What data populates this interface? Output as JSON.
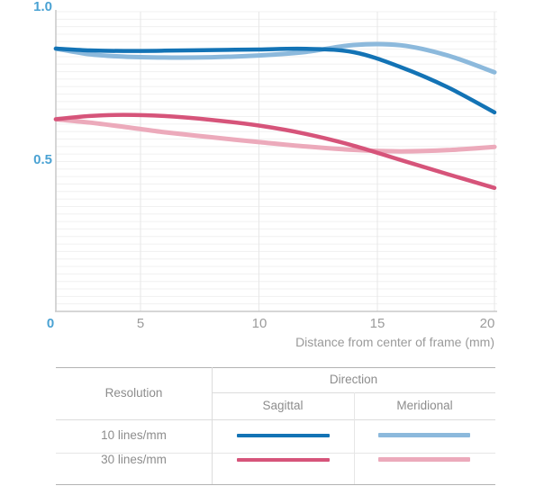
{
  "chart_data": {
    "type": "line",
    "title": "",
    "xlabel": "Distance from center of frame (mm)",
    "ylabel": "",
    "xlim": [
      0,
      20
    ],
    "ylim": [
      0,
      1
    ],
    "x_tick_labels": [
      "0",
      "5",
      "10",
      "15",
      "20"
    ],
    "x_tick_values": [
      0,
      5,
      10,
      15,
      20
    ],
    "y_tick_labels": [
      "1.0",
      "0.5"
    ],
    "y_tick_values": [
      1.0,
      0.5
    ],
    "minor_y_grid_step": 0.025,
    "grid": "on",
    "accent_color": "#4aa2d3",
    "legend_position": "bottom-table",
    "x": [
      0,
      2,
      4,
      6,
      8,
      10,
      12,
      14,
      16,
      18,
      20
    ],
    "series": [
      {
        "name": "10 lines/mm Sagittal",
        "color": "#1373b5",
        "values": [
          0.877,
          0.871,
          0.869,
          0.87,
          0.872,
          0.874,
          0.876,
          0.865,
          0.815,
          0.748,
          0.664
        ]
      },
      {
        "name": "10 lines/mm Meridional",
        "color": "#8cb9dc",
        "values": [
          0.877,
          0.858,
          0.85,
          0.847,
          0.848,
          0.854,
          0.866,
          0.889,
          0.888,
          0.854,
          0.798
        ]
      },
      {
        "name": "30 lines/mm Sagittal",
        "color": "#d6547a",
        "values": [
          0.641,
          0.652,
          0.656,
          0.652,
          0.639,
          0.62,
          0.592,
          0.553,
          0.505,
          0.458,
          0.412
        ]
      },
      {
        "name": "30 lines/mm Meridional",
        "color": "#ecaabb",
        "values": [
          0.641,
          0.63,
          0.616,
          0.598,
          0.581,
          0.565,
          0.55,
          0.539,
          0.534,
          0.538,
          0.549
        ]
      }
    ]
  },
  "legend_table": {
    "col1_header": "Resolution",
    "group_header": "Direction",
    "col2_header": "Sagittal",
    "col3_header": "Meridional",
    "rows": [
      {
        "label": "10 lines/mm",
        "sagittal_color": "#1373b5",
        "meridional_color": "#8cb9dc"
      },
      {
        "label": "30 lines/mm",
        "sagittal_color": "#d6547a",
        "meridional_color": "#ecaabb"
      }
    ]
  }
}
